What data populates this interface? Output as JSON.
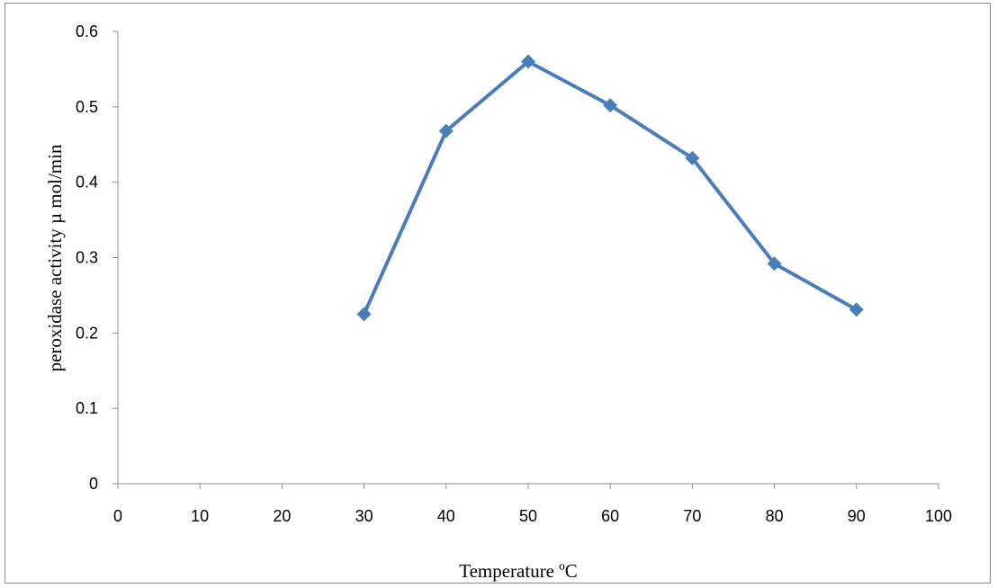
{
  "chart_data": {
    "type": "line",
    "xlabel": "Temperature ºC",
    "ylabel": "peroxidase activity µ mol/min",
    "xlim": [
      0,
      100
    ],
    "ylim": [
      0,
      0.6
    ],
    "x_ticks": [
      0,
      10,
      20,
      30,
      40,
      50,
      60,
      70,
      80,
      90,
      100
    ],
    "y_ticks": [
      0,
      0.1,
      0.2,
      0.3,
      0.4,
      0.5,
      0.6
    ],
    "grid": false,
    "legend": "none",
    "marker": "diamond",
    "series": [
      {
        "x": [
          30,
          40,
          50,
          60,
          70,
          80,
          90
        ],
        "values": [
          0.225,
          0.468,
          0.56,
          0.502,
          0.432,
          0.292,
          0.231
        ],
        "color": "#4a7ebb"
      }
    ]
  }
}
